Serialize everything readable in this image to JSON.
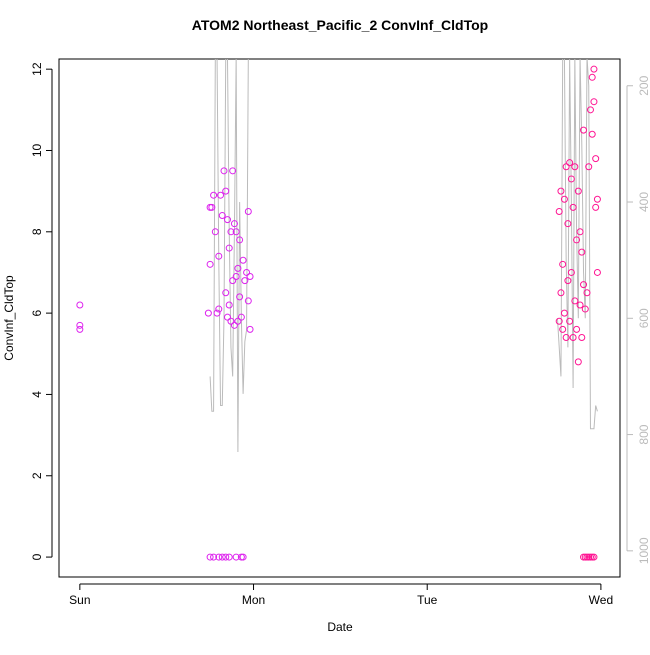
{
  "chart_data": {
    "type": "scatter",
    "title": "ATOM2 Northeast_Pacific_2 ConvInf_CldTop",
    "x_label": "Date",
    "y_label": "ConvInf_CldTop",
    "xlim": [
      -0.12,
      3.11
    ],
    "xticks": [
      {
        "value": 0,
        "label": "Sun"
      },
      {
        "value": 1,
        "label": "Mon"
      },
      {
        "value": 2,
        "label": "Tue"
      },
      {
        "value": 3,
        "label": "Wed"
      }
    ],
    "ylim": [
      -0.49,
      12.25
    ],
    "yticks": [
      0,
      2,
      4,
      6,
      8,
      10,
      12
    ],
    "y2lim": [
      1045,
      154
    ],
    "y2ticks": [
      200,
      400,
      600,
      800,
      1000
    ],
    "series": [
      {
        "color": "#bbbbbb",
        "axis": "y2",
        "line": true,
        "x": [
          0.75,
          0.76,
          0.77,
          0.78,
          0.79,
          0.8,
          0.81,
          0.82,
          0.83,
          0.84,
          0.85,
          0.86,
          0.87,
          0.88,
          0.89,
          0.9,
          0.91,
          0.92,
          0.93,
          0.94,
          0.95,
          0.96,
          0.97,
          0.98,
          null,
          2.75,
          2.76,
          2.77,
          2.78,
          2.79,
          2.8,
          2.81,
          2.82,
          2.83,
          2.84,
          2.85,
          2.86,
          2.87,
          2.88,
          2.89,
          2.9,
          2.91,
          2.92,
          2.93,
          2.94,
          2.95,
          2.96,
          2.97,
          2.98
        ],
        "values": [
          700,
          760,
          760,
          150,
          150,
          500,
          750,
          750,
          600,
          150,
          150,
          450,
          650,
          700,
          450,
          150,
          830,
          400,
          600,
          730,
          640,
          620,
          150,
          150,
          null,
          600,
          650,
          700,
          150,
          150,
          500,
          650,
          150,
          400,
          720,
          150,
          450,
          600,
          150,
          300,
          520,
          600,
          150,
          200,
          790,
          790,
          790,
          750,
          760
        ]
      },
      {
        "color": "#dd22ee",
        "x": [
          0,
          0,
          0,
          0.74,
          0.75,
          0.75,
          0.76,
          0.77,
          0.78,
          0.79,
          0.8,
          0.8,
          0.81,
          0.82,
          0.83,
          0.84,
          0.84,
          0.85,
          0.85,
          0.86,
          0.86,
          0.87,
          0.87,
          0.88,
          0.88,
          0.89,
          0.89,
          0.9,
          0.9,
          0.91,
          0.91,
          0.92,
          0.92,
          0.93,
          0.94,
          0.95,
          0.96,
          0.97,
          0.97,
          0.98,
          0.98,
          0.75,
          0.77,
          0.8,
          0.82,
          0.84,
          0.86,
          0.9,
          0.93,
          0.94
        ],
        "values": [
          6.2,
          5.7,
          5.6,
          6.0,
          8.6,
          7.2,
          8.6,
          8.9,
          8.0,
          6.0,
          7.4,
          6.1,
          8.9,
          8.4,
          9.5,
          6.5,
          9.0,
          5.9,
          8.3,
          6.2,
          7.6,
          5.8,
          8.0,
          6.8,
          9.5,
          5.7,
          8.2,
          6.9,
          8.0,
          5.8,
          7.1,
          6.4,
          7.8,
          5.9,
          7.3,
          6.8,
          7.0,
          6.3,
          8.5,
          5.6,
          6.9,
          0,
          0,
          0,
          0,
          0,
          0,
          0,
          0,
          0
        ]
      },
      {
        "color": "#ff1493",
        "x": [
          2.76,
          2.76,
          2.77,
          2.77,
          2.78,
          2.78,
          2.79,
          2.79,
          2.8,
          2.8,
          2.81,
          2.81,
          2.82,
          2.82,
          2.83,
          2.83,
          2.84,
          2.84,
          2.85,
          2.85,
          2.86,
          2.86,
          2.87,
          2.87,
          2.88,
          2.88,
          2.89,
          2.89,
          2.9,
          2.9,
          2.91,
          2.92,
          2.93,
          2.94,
          2.95,
          2.95,
          2.96,
          2.96,
          2.97,
          2.97,
          2.98,
          2.98,
          2.9,
          2.91,
          2.92,
          2.93,
          2.94,
          2.95,
          2.96
        ],
        "values": [
          5.8,
          8.5,
          6.5,
          9.0,
          5.6,
          7.2,
          8.8,
          6.0,
          9.6,
          5.4,
          8.2,
          6.8,
          9.7,
          5.8,
          7.0,
          9.3,
          5.4,
          8.6,
          6.3,
          9.6,
          5.6,
          7.8,
          4.8,
          9.0,
          6.2,
          8.0,
          5.4,
          7.5,
          10.5,
          6.7,
          6.1,
          6.5,
          9.6,
          11.0,
          11.8,
          10.4,
          11.2,
          12.0,
          9.8,
          8.6,
          8.8,
          7.0,
          0,
          0,
          0,
          0,
          0,
          0,
          0
        ]
      }
    ]
  }
}
